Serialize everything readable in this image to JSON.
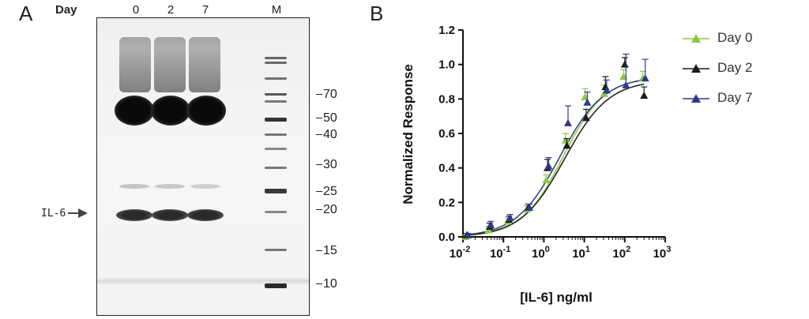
{
  "panel_a": {
    "label": "A",
    "day_header": "Day",
    "lanes": [
      "0",
      "2",
      "7",
      "M"
    ],
    "marker_weights": [
      "70",
      "50",
      "40",
      "30",
      "25",
      "20",
      "15",
      "10"
    ],
    "protein_label": "IL-6"
  },
  "panel_b": {
    "label": "B"
  },
  "chart_data": {
    "type": "scatter",
    "xlabel": "[IL-6] ng/ml",
    "ylabel": "Normalized Response",
    "xscale": "log",
    "xlim": [
      0.01,
      1000
    ],
    "ylim": [
      0.0,
      1.2
    ],
    "xtick_exponents": [
      "-2",
      "-1",
      "0",
      "1",
      "2",
      "3"
    ],
    "yticks": [
      "0.0",
      "0.2",
      "0.4",
      "0.6",
      "0.8",
      "1.0",
      "1.2"
    ],
    "legend_position": "right",
    "x": [
      0.0124,
      0.0457,
      0.137,
      0.412,
      1.23,
      3.7,
      11.1,
      33.3,
      100,
      300
    ],
    "series": [
      {
        "name": "Day 0",
        "color": "#8dc63f",
        "values": [
          0.0,
          0.04,
          0.09,
          0.16,
          0.33,
          0.56,
          0.81,
          0.83,
          0.93,
          0.92
        ],
        "errors": [
          0.01,
          0.02,
          0.02,
          0.02,
          0.03,
          0.04,
          0.05,
          0.05,
          0.04,
          0.04
        ],
        "curve": {
          "bottom": 0.0,
          "top": 0.93,
          "ec50": 3.0,
          "hill": 0.85
        }
      },
      {
        "name": "Day 2",
        "color": "#1a1a1a",
        "values": [
          0.01,
          0.06,
          0.1,
          0.17,
          0.4,
          0.53,
          0.69,
          0.87,
          1.0,
          0.82
        ],
        "errors": [
          0.01,
          0.02,
          0.02,
          0.02,
          0.05,
          0.04,
          0.05,
          0.06,
          0.04,
          0.05
        ],
        "curve": {
          "bottom": 0.0,
          "top": 0.91,
          "ec50": 3.3,
          "hill": 0.8
        }
      },
      {
        "name": "Day 7",
        "color": "#2e3a87",
        "values": [
          0.01,
          0.07,
          0.11,
          0.17,
          0.41,
          0.66,
          0.78,
          0.85,
          0.88,
          0.92
        ],
        "errors": [
          0.01,
          0.02,
          0.02,
          0.02,
          0.05,
          0.1,
          0.06,
          0.06,
          0.18,
          0.11
        ],
        "curve": {
          "bottom": 0.0,
          "top": 0.93,
          "ec50": 2.5,
          "hill": 0.8
        }
      }
    ]
  }
}
